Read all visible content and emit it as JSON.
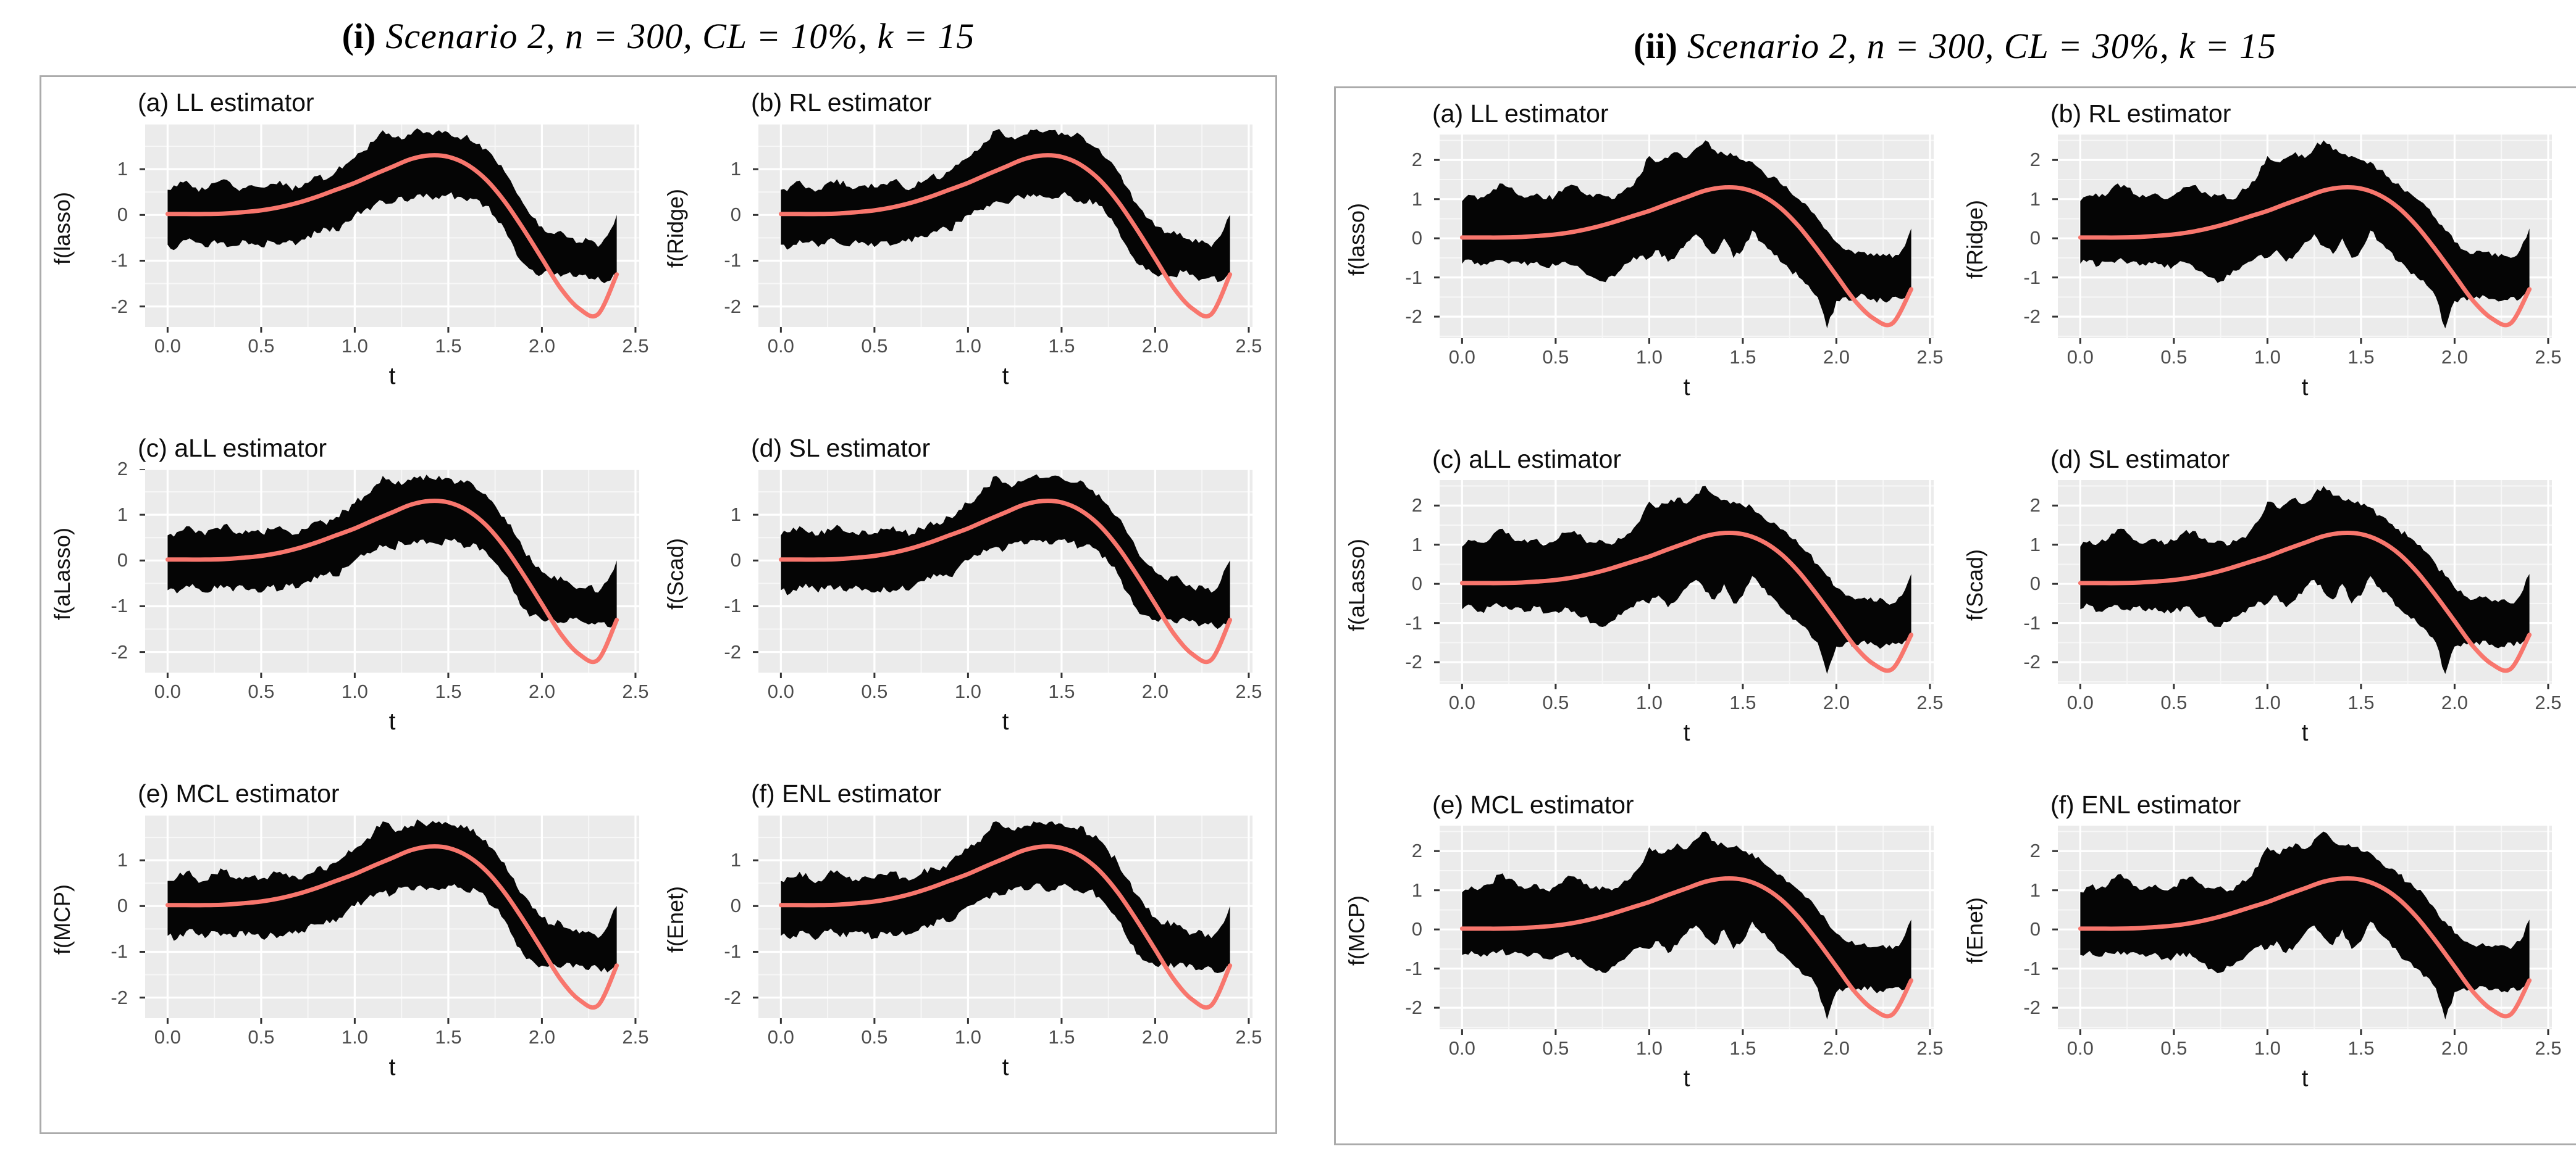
{
  "figure": {
    "panels": [
      {
        "numeral": "(i)",
        "title": "Scenario 2, n = 300, CL = 10%, k = 15",
        "subplots": [
          {
            "label": "(a) LL estimator",
            "ylabel": "f(lasso)",
            "yticks": [
              1,
              0,
              -1,
              -2
            ]
          },
          {
            "label": "(b) RL estimator",
            "ylabel": "f(Ridge)",
            "yticks": [
              1,
              0,
              -1,
              -2
            ]
          },
          {
            "label": "(c) aLL estimator",
            "ylabel": "f(aLasso)",
            "yticks": [
              2,
              1,
              0,
              -1,
              -2
            ]
          },
          {
            "label": "(d) SL estimator",
            "ylabel": "f(Scad)",
            "yticks": [
              1,
              0,
              -1,
              -2
            ]
          },
          {
            "label": "(e) MCL estimator",
            "ylabel": "f(MCP)",
            "yticks": [
              1,
              0,
              -1,
              -2
            ]
          },
          {
            "label": "(f) ENL estimator",
            "ylabel": "f(Enet)",
            "yticks": [
              1,
              0,
              -1,
              -2
            ]
          }
        ]
      },
      {
        "numeral": "(ii)",
        "title": "Scenario 2, n = 300, CL = 30%, k = 15",
        "subplots": [
          {
            "label": "(a) LL estimator",
            "ylabel": "f(lasso)",
            "yticks": [
              2,
              1,
              0,
              -1,
              -2
            ]
          },
          {
            "label": "(b) RL estimator",
            "ylabel": "f(Ridge)",
            "yticks": [
              2,
              1,
              0,
              -1,
              -2
            ]
          },
          {
            "label": "(c) aLL estimator",
            "ylabel": "f(aLasso)",
            "yticks": [
              2,
              1,
              0,
              -1,
              -2
            ]
          },
          {
            "label": "(d) SL estimator",
            "ylabel": "f(Scad)",
            "yticks": [
              2,
              1,
              0,
              -1,
              -2
            ]
          },
          {
            "label": "(e) MCL estimator",
            "ylabel": "f(MCP)",
            "yticks": [
              2,
              1,
              0,
              -1,
              -2
            ]
          },
          {
            "label": "(f) ENL estimator",
            "ylabel": "f(Enet)",
            "yticks": [
              2,
              1,
              0,
              -1,
              -2
            ]
          }
        ]
      }
    ]
  },
  "chart_data": {
    "type": "line",
    "description": "Ensemble of k=15-knot spline estimates (black band) around true function (salmon curve) for six penalized estimators; left panel CL=10%, right panel CL=30% censoring",
    "xlabel": "t",
    "xlim": [
      -0.12,
      2.52
    ],
    "xticks": [
      0.0,
      0.5,
      1.0,
      1.5,
      2.0,
      2.5
    ],
    "xtick_labels": [
      "0.0",
      "0.5",
      "1.0",
      "1.5",
      "2.0",
      "2.5"
    ],
    "x_minor_step": 0.25,
    "true_curve": {
      "x": [
        0.0,
        0.1,
        0.2,
        0.3,
        0.4,
        0.5,
        0.6,
        0.7,
        0.8,
        0.9,
        1.0,
        1.1,
        1.2,
        1.3,
        1.4,
        1.5,
        1.6,
        1.7,
        1.8,
        1.9,
        2.0,
        2.1,
        2.2,
        2.3,
        2.4
      ],
      "y": [
        0.02,
        0.02,
        0.02,
        0.03,
        0.06,
        0.1,
        0.17,
        0.27,
        0.4,
        0.55,
        0.7,
        0.88,
        1.05,
        1.22,
        1.3,
        1.27,
        1.1,
        0.78,
        0.3,
        -0.3,
        -0.95,
        -1.6,
        -2.05,
        -2.17,
        -1.3
      ]
    },
    "band_x": [
      0.0,
      0.05,
      0.1,
      0.15,
      0.2,
      0.25,
      0.3,
      0.35,
      0.4,
      0.45,
      0.5,
      0.55,
      0.6,
      0.65,
      0.7,
      0.75,
      0.8,
      0.85,
      0.9,
      0.95,
      1.0,
      1.05,
      1.1,
      1.15,
      1.2,
      1.25,
      1.3,
      1.35,
      1.4,
      1.45,
      1.5,
      1.55,
      1.6,
      1.65,
      1.7,
      1.75,
      1.8,
      1.85,
      1.9,
      1.95,
      2.0,
      2.05,
      2.1,
      2.15,
      2.2,
      2.25,
      2.3,
      2.35,
      2.4
    ],
    "panels": [
      {
        "id": "i",
        "ylim": [
          -2.45,
          2.0
        ],
        "band_hi": [
          0.55,
          0.62,
          0.75,
          0.6,
          0.55,
          0.7,
          0.78,
          0.62,
          0.58,
          0.65,
          0.6,
          0.68,
          0.75,
          0.62,
          0.58,
          0.7,
          0.85,
          0.78,
          0.95,
          1.1,
          1.25,
          1.4,
          1.6,
          1.85,
          1.7,
          1.65,
          1.75,
          1.85,
          1.8,
          1.85,
          1.8,
          1.7,
          1.75,
          1.55,
          1.45,
          1.2,
          0.95,
          0.6,
          0.25,
          -0.05,
          -0.25,
          -0.4,
          -0.35,
          -0.5,
          -0.6,
          -0.55,
          -0.7,
          -0.45,
          0.0
        ],
        "band_lo": [
          -0.65,
          -0.72,
          -0.55,
          -0.6,
          -0.7,
          -0.55,
          -0.6,
          -0.68,
          -0.55,
          -0.62,
          -0.7,
          -0.58,
          -0.65,
          -0.55,
          -0.6,
          -0.45,
          -0.4,
          -0.3,
          -0.35,
          -0.15,
          0.0,
          0.1,
          0.2,
          0.3,
          0.25,
          0.4,
          0.35,
          0.45,
          0.4,
          0.35,
          0.45,
          0.4,
          0.3,
          0.35,
          0.2,
          -0.05,
          -0.3,
          -0.7,
          -1.05,
          -1.2,
          -1.3,
          -1.25,
          -1.35,
          -1.25,
          -1.3,
          -1.4,
          -1.35,
          -1.45,
          -1.3
        ]
      },
      {
        "id": "ii",
        "ylim": [
          -2.55,
          2.65
        ],
        "band_hi": [
          0.95,
          1.1,
          1.05,
          1.15,
          1.4,
          1.3,
          1.1,
          1.05,
          1.15,
          1.0,
          1.1,
          1.3,
          1.35,
          1.15,
          1.05,
          1.1,
          1.0,
          1.15,
          1.3,
          1.6,
          2.1,
          1.95,
          2.05,
          2.2,
          2.05,
          2.3,
          2.5,
          2.25,
          2.15,
          2.1,
          2.0,
          1.95,
          1.75,
          1.55,
          1.4,
          1.2,
          1.0,
          0.8,
          0.5,
          0.2,
          -0.1,
          -0.3,
          -0.4,
          -0.35,
          -0.45,
          -0.4,
          -0.5,
          -0.3,
          0.25
        ],
        "band_lo": [
          -0.65,
          -0.55,
          -0.7,
          -0.6,
          -0.55,
          -0.65,
          -0.6,
          -0.7,
          -0.6,
          -0.75,
          -0.7,
          -0.6,
          -0.7,
          -0.85,
          -1.0,
          -1.1,
          -0.95,
          -0.8,
          -0.6,
          -0.45,
          -0.5,
          -0.3,
          -0.6,
          -0.4,
          -0.1,
          0.1,
          -0.2,
          -0.4,
          0.0,
          -0.5,
          -0.3,
          0.2,
          -0.1,
          -0.3,
          -0.6,
          -0.8,
          -1.0,
          -1.2,
          -1.5,
          -2.3,
          -1.6,
          -1.5,
          -1.55,
          -1.45,
          -1.55,
          -1.6,
          -1.5,
          -1.55,
          -1.3
        ]
      }
    ],
    "colors": {
      "band": "#050505",
      "curve": "#F8766D",
      "panel_bg": "#EBEBEB",
      "grid_major": "#FFFFFF",
      "grid_minor": "#F7F7F7",
      "tick_mark": "#333333",
      "tick_text": "#4D4D4D",
      "group_border": "#ABABAB"
    },
    "legend": "none",
    "grid": "on"
  },
  "layout_text": {
    "x_axis_label": "t"
  }
}
